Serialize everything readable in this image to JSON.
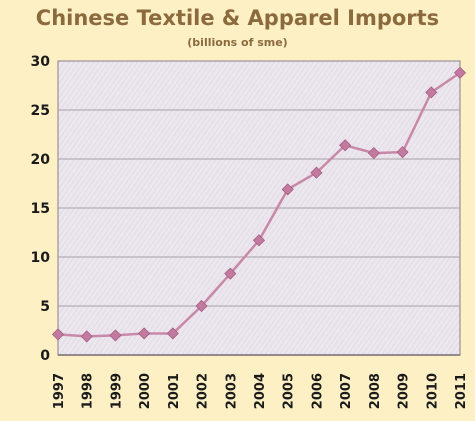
{
  "chart_data": {
    "type": "line",
    "title": "Chinese Textile & Apparel Imports",
    "subtitle": "(billions of sme)",
    "xlabel": "",
    "ylabel": "",
    "categories": [
      "1997",
      "1998",
      "1999",
      "2000",
      "2001",
      "2002",
      "2003",
      "2004",
      "2005",
      "2006",
      "2007",
      "2008",
      "2009",
      "2010",
      "2011"
    ],
    "series": [
      {
        "values": [
          2.1,
          1.9,
          2.0,
          2.2,
          2.2,
          5.0,
          8.3,
          11.7,
          16.9,
          18.6,
          21.4,
          20.6,
          20.7,
          26.8,
          28.8
        ]
      }
    ],
    "ylim": [
      0,
      30
    ],
    "yticks": [
      0,
      5,
      10,
      15,
      20,
      25,
      30
    ],
    "grid": true,
    "legend": "none",
    "colors": {
      "background": "#fdf0c4",
      "plot_area": "#ece6ee",
      "line": "#c889a9",
      "marker": "#c27b9f",
      "gridline": "#a8a0a4",
      "title": "#8b6a3e"
    }
  }
}
